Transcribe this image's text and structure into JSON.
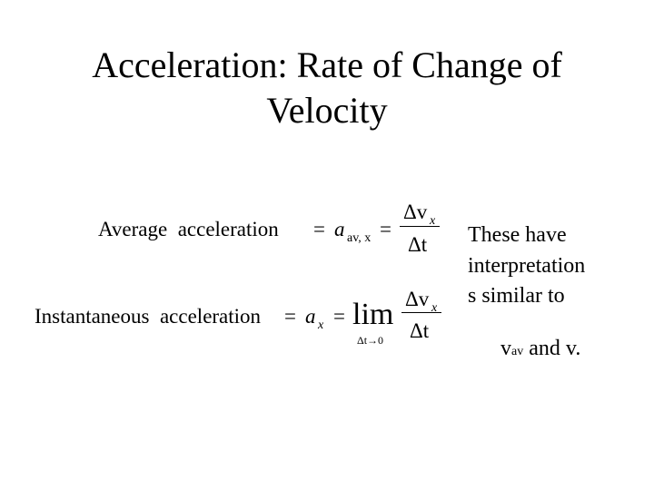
{
  "title_lines": [
    "Acceleration: Rate of Change of",
    "Velocity"
  ],
  "average": {
    "label": "Average  acceleration",
    "eq1": "=",
    "symbol": "a",
    "symbol_sub": "av, x",
    "eq2": "=",
    "numerator": "Δv",
    "numerator_sub": "x",
    "denominator": "Δt"
  },
  "instantaneous": {
    "label": "Instantaneous  acceleration",
    "eq1": "=",
    "symbol": "a",
    "symbol_sub": "x",
    "eq2": "=",
    "limit": "lim",
    "limit_sub": "Δt→0",
    "numerator": "Δv",
    "numerator_sub": "x",
    "denominator": "Δt"
  },
  "note": {
    "lines": [
      "These have",
      "interpretation",
      "s similar to"
    ],
    "last_line": {
      "v": "v",
      "v_sub": "av",
      "rest": "and v."
    }
  }
}
